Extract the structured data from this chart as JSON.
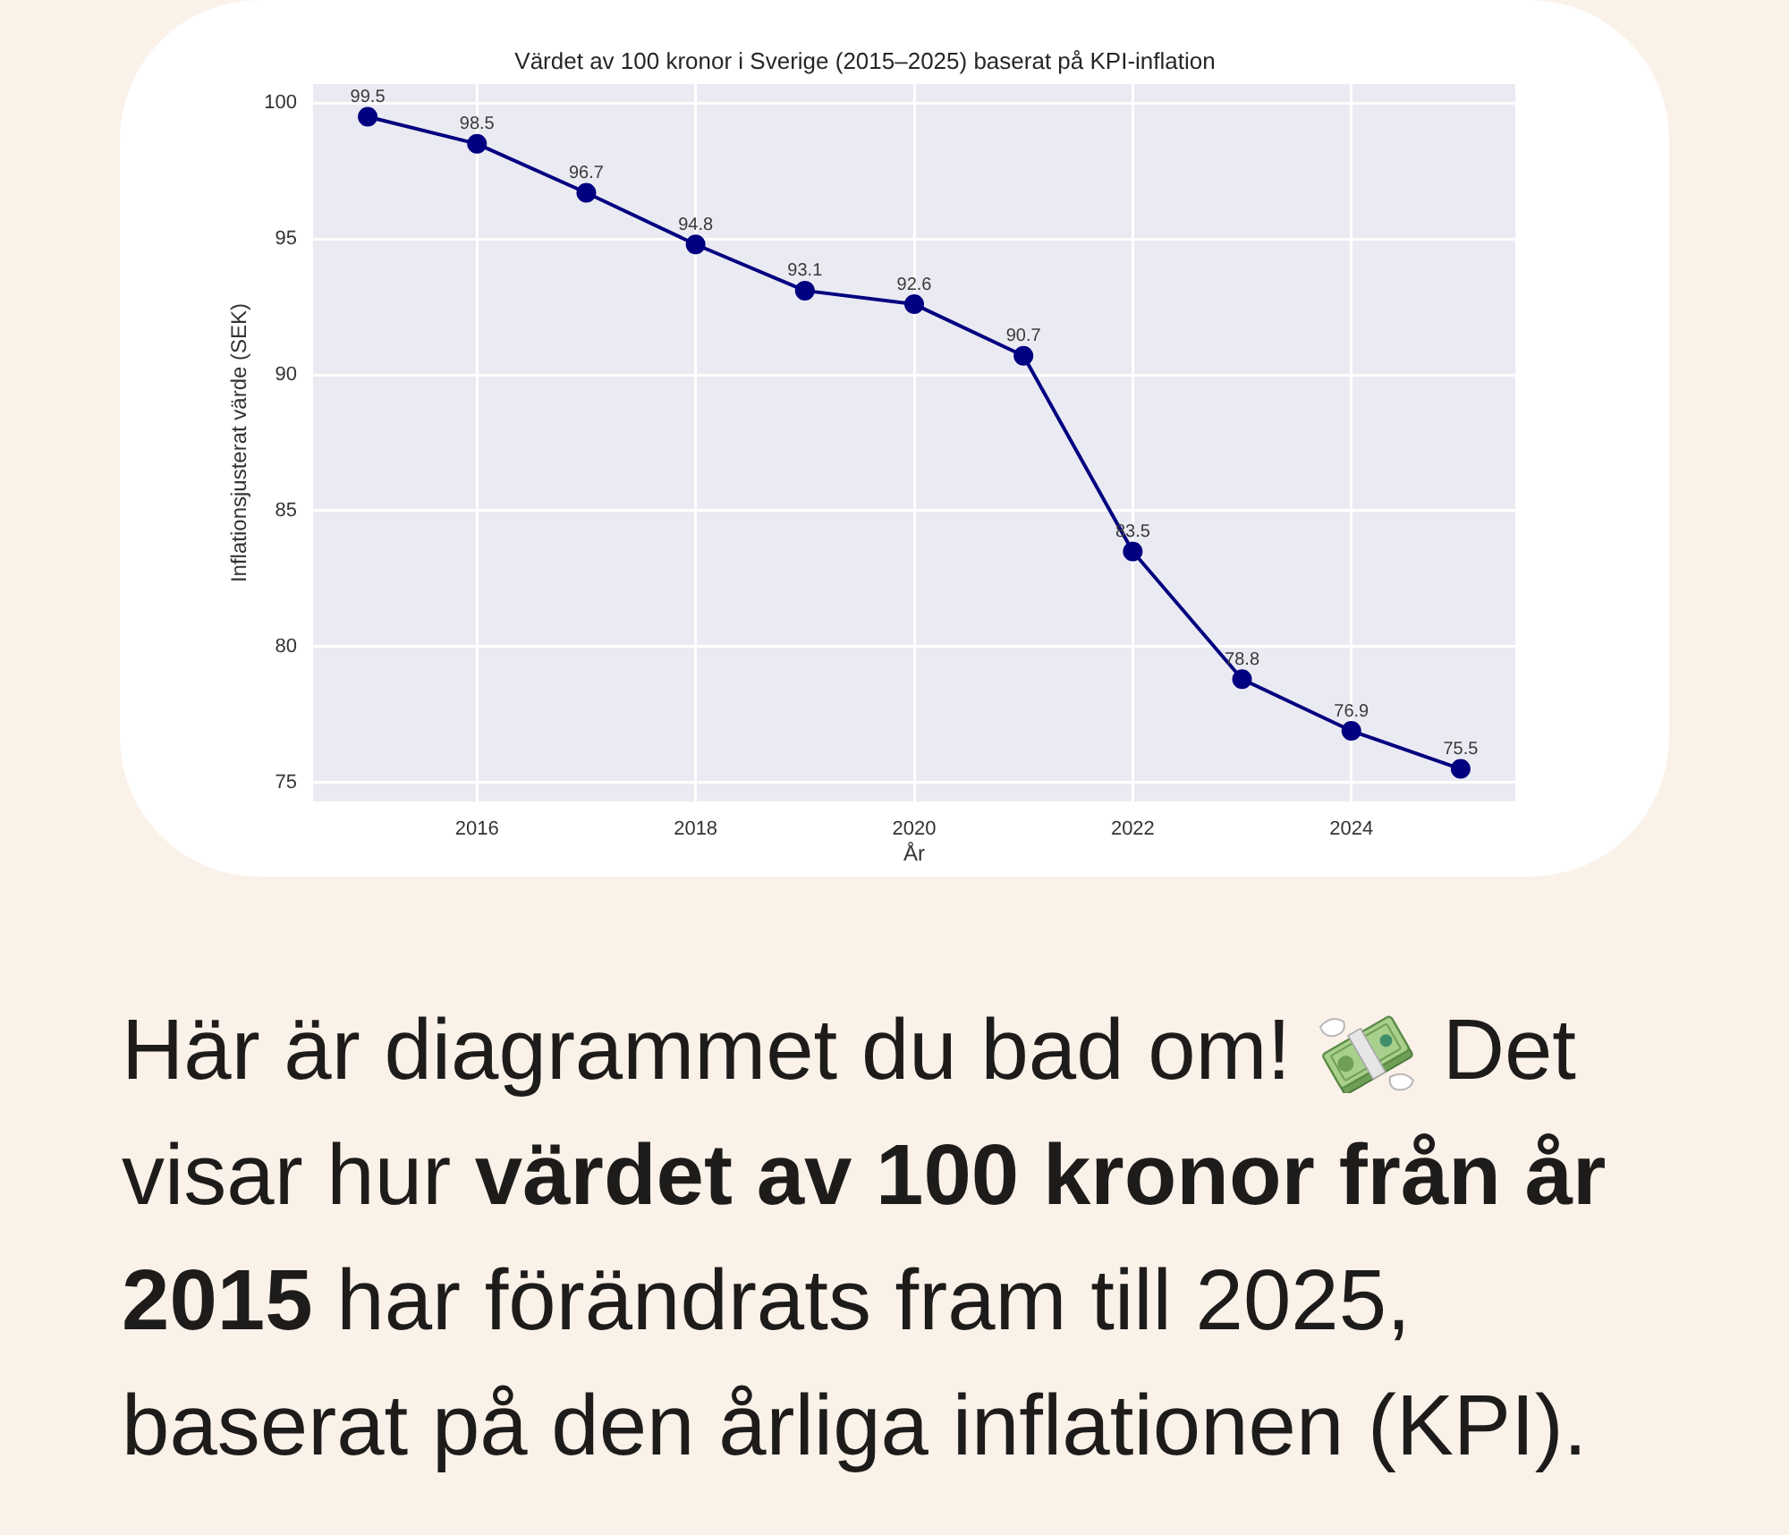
{
  "chart_data": {
    "type": "line",
    "title": "Värdet av 100 kronor i Sverige (2015–2025) baserat på KPI-inflation",
    "xlabel": "År",
    "ylabel": "Inflationsjusterat värde (SEK)",
    "x": [
      2015,
      2016,
      2017,
      2018,
      2019,
      2020,
      2021,
      2022,
      2023,
      2024,
      2025
    ],
    "series": [
      {
        "color": "#000080",
        "values": [
          99.5,
          98.5,
          96.7,
          94.8,
          93.1,
          92.6,
          90.7,
          83.5,
          78.8,
          76.9,
          75.5
        ]
      }
    ],
    "xlim": [
      2014.5,
      2025.5
    ],
    "ylim": [
      74.3,
      100.7
    ],
    "xticks": [
      2016,
      2018,
      2020,
      2022,
      2024
    ],
    "yticks": [
      75,
      80,
      85,
      90,
      95,
      100
    ],
    "grid": true,
    "marker": "circle",
    "line_style": "solid",
    "data_labels": true,
    "annotations": [
      "Här är diagrammet du bad om!",
      "Det",
      "visar hur",
      "värdet av 100 kronor från år",
      "2015",
      "har förändrats fram till 2025,",
      "baserat på den årliga inflationen (KPI)."
    ]
  }
}
